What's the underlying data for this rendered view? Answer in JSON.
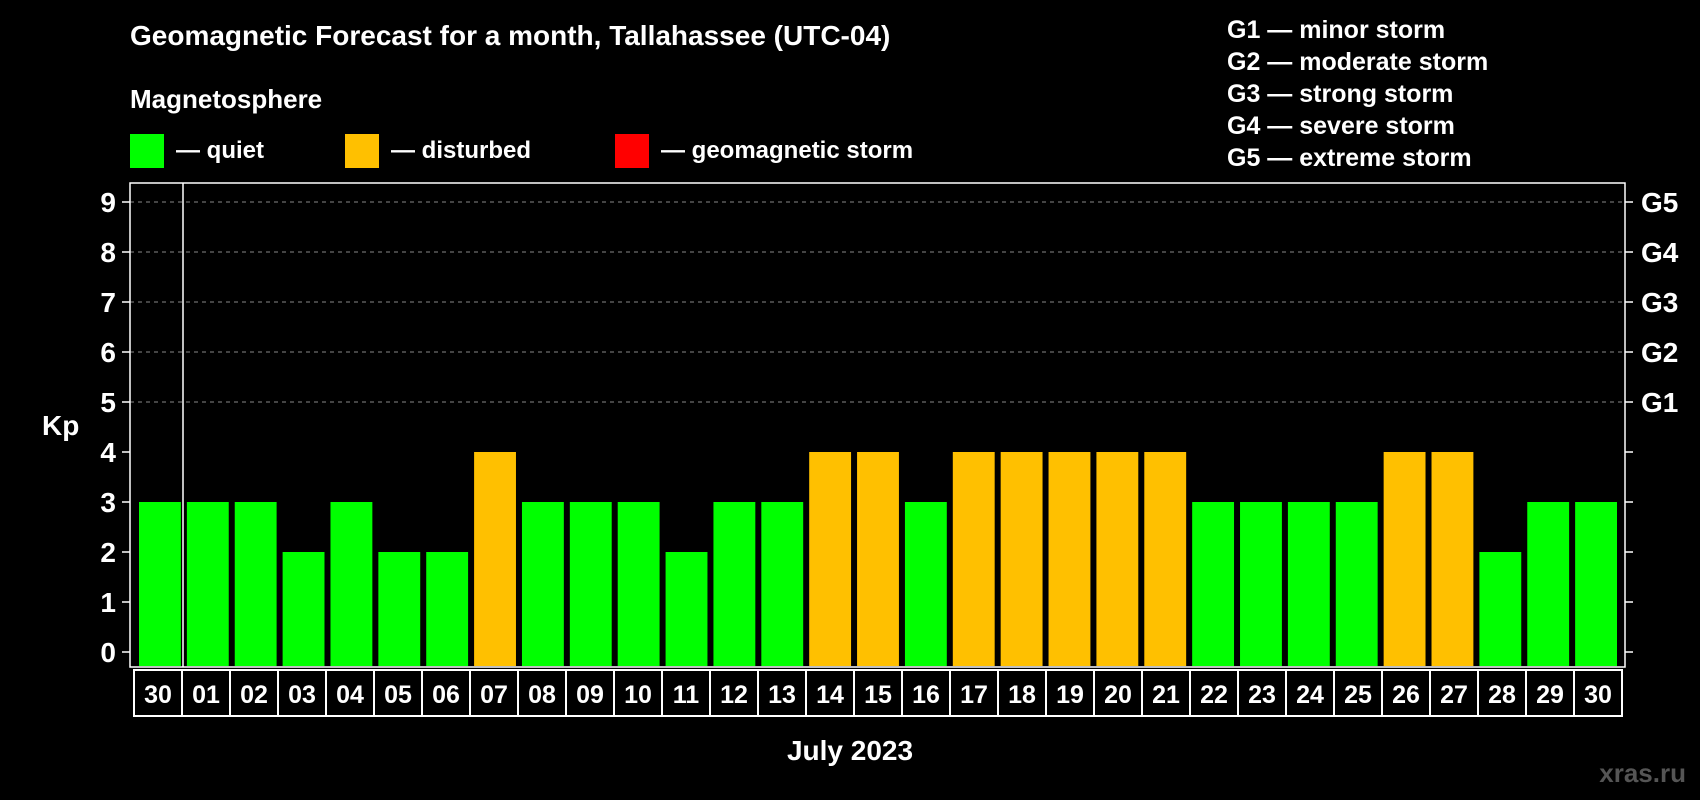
{
  "chart_data": {
    "type": "bar",
    "title": "Geomagnetic Forecast for a month, Tallahassee (UTC-04)",
    "subtitle": "Magnetosphere",
    "ylabel": "Kp",
    "xlabel": "July 2023",
    "ylim": [
      0,
      9
    ],
    "yticks": [
      "0",
      "1",
      "2",
      "3",
      "4",
      "5",
      "6",
      "7",
      "8",
      "9"
    ],
    "right_axis": [
      {
        "kp": 5,
        "label": "G1"
      },
      {
        "kp": 6,
        "label": "G2"
      },
      {
        "kp": 7,
        "label": "G3"
      },
      {
        "kp": 8,
        "label": "G4"
      },
      {
        "kp": 9,
        "label": "G5"
      }
    ],
    "categories": [
      "30",
      "01",
      "02",
      "03",
      "04",
      "05",
      "06",
      "07",
      "08",
      "09",
      "10",
      "11",
      "12",
      "13",
      "14",
      "15",
      "16",
      "17",
      "18",
      "19",
      "20",
      "21",
      "22",
      "23",
      "24",
      "25",
      "26",
      "27",
      "28",
      "29",
      "30"
    ],
    "values": [
      3,
      3,
      3,
      2,
      3,
      2,
      2,
      4,
      3,
      3,
      3,
      2,
      3,
      3,
      4,
      4,
      3,
      4,
      4,
      4,
      4,
      4,
      3,
      3,
      3,
      3,
      4,
      4,
      2,
      3,
      3
    ],
    "legend": [
      {
        "label": "— quiet",
        "color": "#00ff00"
      },
      {
        "label": "— disturbed",
        "color": "#ffc000"
      },
      {
        "label": "— geomagnetic storm",
        "color": "#ff0000"
      }
    ],
    "storm_levels": [
      "G1 — minor storm",
      "G2 — moderate storm",
      "G3 — strong storm",
      "G4 — severe storm",
      "G5 — extreme storm"
    ],
    "grid": true
  },
  "watermark": "xras.ru"
}
